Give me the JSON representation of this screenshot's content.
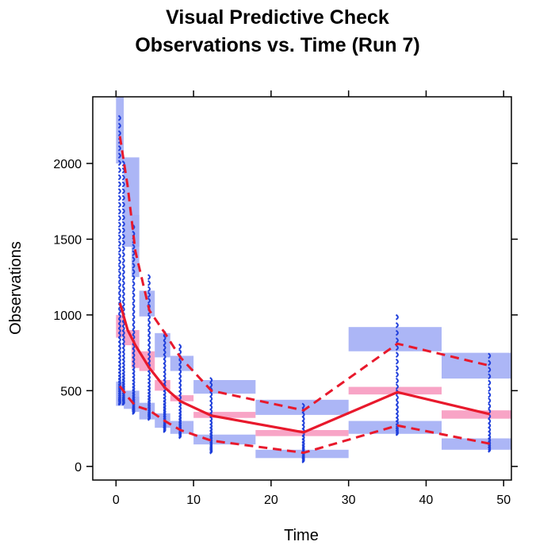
{
  "chart_data": {
    "type": "scatter",
    "title": "Visual Predictive Check",
    "subtitle": "Observations vs. Time (Run 7)",
    "xlabel": "Time",
    "ylabel": "Observations",
    "xlim": [
      -3,
      51
    ],
    "ylim": [
      -90,
      2440
    ],
    "xticks": [
      0,
      10,
      20,
      30,
      40,
      50
    ],
    "yticks": [
      0,
      500,
      1000,
      1500,
      2000
    ],
    "grid": false,
    "colors": {
      "observations": "#1f3fdb",
      "median_line": "#e8192c",
      "percentile_lines": "#e8192c",
      "pi_band_outer": "#a3aef5",
      "pi_band_median": "#f79ac0"
    },
    "bins": [
      {
        "time": 0.5,
        "xlo": 0,
        "xhi": 1,
        "obs_median": 1080,
        "obs_p05": 530,
        "obs_p95": 2180,
        "pi_median": [
          850,
          1000
        ],
        "pi_p05": [
          400,
          560
        ],
        "pi_p95": [
          2000,
          2440
        ]
      },
      {
        "time": 1.5,
        "xlo": 1,
        "xhi": 3,
        "obs_median": 900,
        "obs_p05": 460,
        "obs_p95": 1850,
        "pi_median": [
          800,
          900
        ],
        "pi_p05": [
          380,
          500
        ],
        "pi_p95": [
          1450,
          2040
        ]
      },
      {
        "time": 2.5,
        "xlo": 2,
        "xhi": 3,
        "obs_median": 800,
        "obs_p05": 400,
        "obs_p95": 1420,
        "pi_median": [
          650,
          800
        ],
        "pi_p05": [
          360,
          460
        ],
        "pi_p95": [
          1250,
          1660
        ]
      },
      {
        "time": 4.3,
        "xlo": 3,
        "xhi": 5,
        "obs_median": 650,
        "obs_p05": 370,
        "obs_p95": 1030,
        "pi_median": [
          630,
          760
        ],
        "pi_p05": [
          310,
          420
        ],
        "pi_p95": [
          990,
          1160
        ]
      },
      {
        "time": 6.3,
        "xlo": 5,
        "xhi": 7,
        "obs_median": 520,
        "obs_p05": 300,
        "obs_p95": 880,
        "pi_median": [
          500,
          570
        ],
        "pi_p05": [
          255,
          350
        ],
        "pi_p95": [
          720,
          880
        ]
      },
      {
        "time": 8.3,
        "xlo": 7,
        "xhi": 10,
        "obs_median": 430,
        "obs_p05": 240,
        "obs_p95": 720,
        "pi_median": [
          430,
          470
        ],
        "pi_p05": [
          215,
          300
        ],
        "pi_p95": [
          630,
          730
        ]
      },
      {
        "time": 12.3,
        "xlo": 10,
        "xhi": 18,
        "obs_median": 335,
        "obs_p05": 170,
        "obs_p95": 500,
        "pi_median": [
          320,
          360
        ],
        "pi_p05": [
          145,
          210
        ],
        "pi_p95": [
          480,
          570
        ]
      },
      {
        "time": 24.2,
        "xlo": 18,
        "xhi": 30,
        "obs_median": 225,
        "obs_p05": 90,
        "obs_p95": 370,
        "pi_median": [
          200,
          240
        ],
        "pi_p05": [
          55,
          110
        ],
        "pi_p95": [
          340,
          440
        ]
      },
      {
        "time": 36.3,
        "xlo": 30,
        "xhi": 42,
        "obs_median": 490,
        "obs_p05": 270,
        "obs_p95": 810,
        "pi_median": [
          475,
          525
        ],
        "pi_p05": [
          215,
          300
        ],
        "pi_p95": [
          760,
          920
        ]
      },
      {
        "time": 48.2,
        "xlo": 42,
        "xhi": 52,
        "obs_median": 345,
        "obs_p05": 150,
        "obs_p95": 665,
        "pi_median": [
          315,
          370
        ],
        "pi_p05": [
          110,
          185
        ],
        "pi_p95": [
          580,
          750
        ]
      }
    ],
    "observations": [
      {
        "time": 0.5,
        "min": 420,
        "max": 2300,
        "count": 60
      },
      {
        "time": 1.0,
        "min": 420,
        "max": 2000,
        "count": 55
      },
      {
        "time": 2.3,
        "min": 360,
        "max": 1580,
        "count": 45
      },
      {
        "time": 4.3,
        "min": 320,
        "max": 1250,
        "count": 38
      },
      {
        "time": 6.3,
        "min": 240,
        "max": 880,
        "count": 32
      },
      {
        "time": 8.3,
        "min": 200,
        "max": 790,
        "count": 28
      },
      {
        "time": 12.3,
        "min": 100,
        "max": 570,
        "count": 24
      },
      {
        "time": 24.2,
        "min": 40,
        "max": 400,
        "count": 20
      },
      {
        "time": 36.3,
        "min": 220,
        "max": 985,
        "count": 24
      },
      {
        "time": 48.2,
        "min": 110,
        "max": 730,
        "count": 22
      }
    ]
  }
}
